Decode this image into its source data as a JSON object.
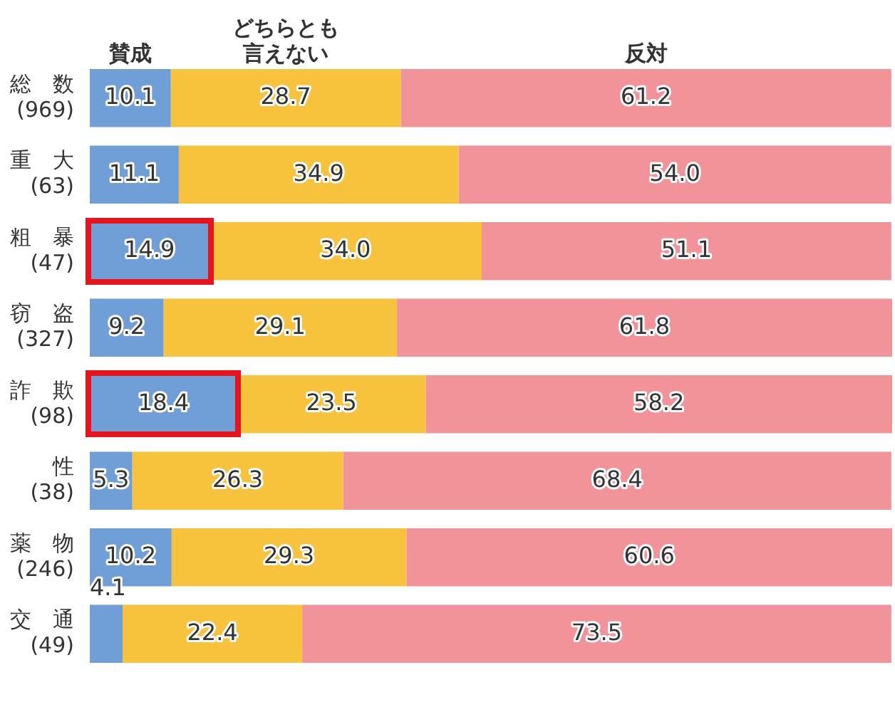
{
  "chart_data": {
    "type": "bar",
    "orientation": "horizontal",
    "stacked": true,
    "categories": [
      "総　数\n(969)",
      "重　大\n(63)",
      "粗　暴\n(47)",
      "窃　盗\n(327)",
      "詐　欺\n(98)",
      "性\n(38)",
      "薬　物\n(246)",
      "交　通\n(49)"
    ],
    "series": [
      {
        "name": "賛成",
        "color": "#6f9fd6",
        "values": [
          10.1,
          11.1,
          14.9,
          9.2,
          18.4,
          5.3,
          10.2,
          4.1
        ],
        "value_labels": [
          "10.1",
          "11.1",
          "14.9",
          "9.2",
          "18.4",
          "5.3",
          "10.2",
          "4.1"
        ]
      },
      {
        "name": "どちらとも言えない",
        "color": "#f8c33c",
        "values": [
          28.7,
          34.9,
          34.0,
          29.1,
          23.5,
          26.3,
          29.3,
          22.4
        ],
        "value_labels": [
          "28.7",
          "34.9",
          "34.0",
          "29.1",
          "23.5",
          "26.3",
          "29.3",
          "22.4"
        ]
      },
      {
        "name": "反対",
        "color": "#f2939a",
        "values": [
          61.2,
          54.0,
          51.1,
          61.8,
          58.2,
          68.4,
          60.6,
          73.5
        ],
        "value_labels": [
          "61.2",
          "54.0",
          "51.1",
          "61.8",
          "58.2",
          "68.4",
          "60.6",
          "73.5"
        ]
      }
    ]
  }
}
